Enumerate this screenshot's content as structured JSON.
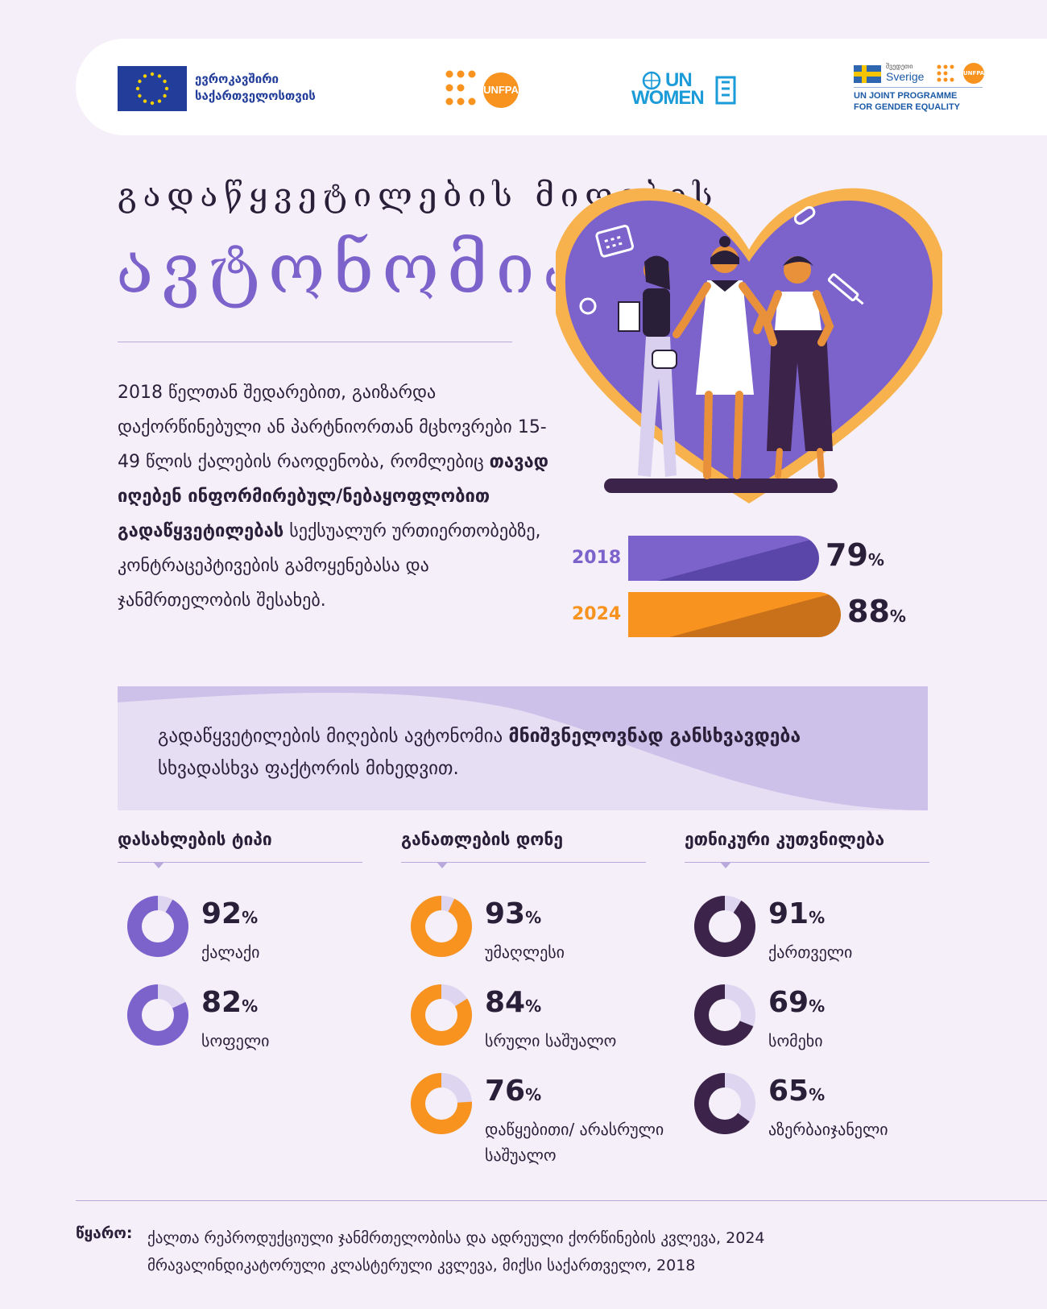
{
  "header": {
    "eu_line1": "ევროკავშირი",
    "eu_line2": "საქართველოსთვის",
    "unfpa": "UNFPA",
    "unwomen_line1": "UN",
    "unwomen_line2": "WOMEN",
    "sverige_small": "შვედეთი",
    "sverige": "Sverige",
    "sverige_unfpa": "UNFPA",
    "joint_line1": "UN JOINT PROGRAMME",
    "joint_line2": "FOR GENDER EQUALITY"
  },
  "title": {
    "line1": "გადაწყვეტილების მიღების",
    "line2": "ავტონომია"
  },
  "intro": {
    "part1": "2018 წელთან შედარებით, გაიზარდა დაქორწინებული ან პარტნიორთან მცხოვრები 15-49 წლის ქალების რაოდენობა, რომლებიც ",
    "bold": "თავად იღებენ ინფორმირებულ/ნებაყოფლობით გადაწყვეტილებას",
    "part2": " სექსუალურ ურთიერთობებზე, კონტრაცეპტივების გამოყენებასა და ჯანმრთელობის შესახებ."
  },
  "callout": {
    "part1": "გადაწყვეტილების მიღების ავტონომია ",
    "bold": "მნიშვნელოვნად განსხვავდება",
    "part2": " სხვადასხვა ფაქტორის მიხედვით."
  },
  "chart_data": [
    {
      "type": "bar",
      "categories": [
        "2018",
        "2024"
      ],
      "values": [
        79,
        88
      ],
      "value_suffix": "%",
      "colors": [
        "#7c63cc",
        "#f7931e"
      ]
    },
    {
      "type": "pie",
      "title": "დასახლების ტიპი",
      "categories": [
        "ქალაქი",
        "სოფელი"
      ],
      "values": [
        92,
        82
      ],
      "value_suffix": "%",
      "color": "#7c63cc"
    },
    {
      "type": "pie",
      "title": "განათლების დონე",
      "categories": [
        "უმაღლესი",
        "სრული საშუალო",
        "დაწყებითი/ არასრული საშუალო"
      ],
      "values": [
        93,
        84,
        76
      ],
      "value_suffix": "%",
      "color": "#f7931e"
    },
    {
      "type": "pie",
      "title": "ეთნიკური კუთვნილება",
      "categories": [
        "ქართველი",
        "სომეხი",
        "აზერბაიჯანელი"
      ],
      "values": [
        91,
        69,
        65
      ],
      "value_suffix": "%",
      "color": "#3c2349"
    }
  ],
  "source": {
    "label": "წყარო:",
    "line1": "ქალთა რეპროდუქციული ჯანმრთელობისა და ადრეული ქორწინების კვლევა, 2024",
    "line2": "მრავალინდიკატორული კლასტერული კვლევა, მიქსი საქართველო, 2018"
  }
}
